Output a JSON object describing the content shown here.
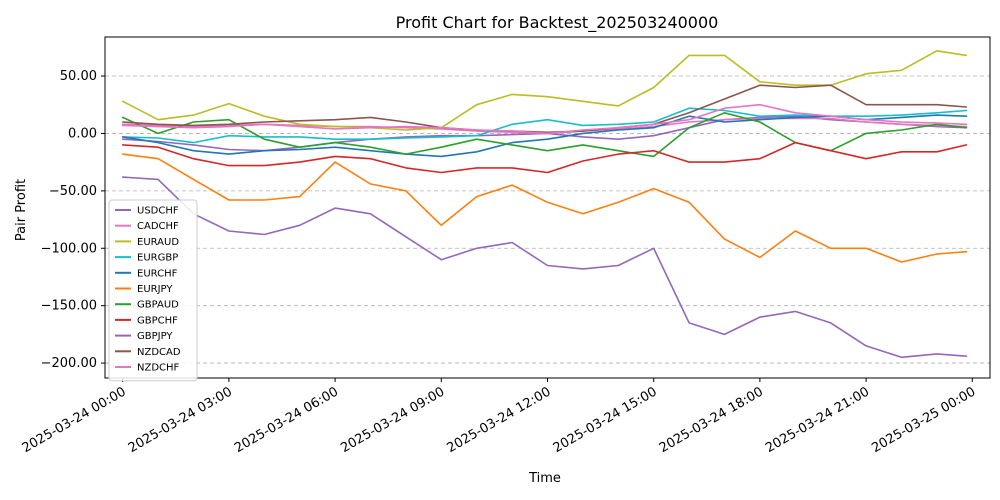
{
  "chart_data": {
    "type": "line",
    "title": "Profit Chart for Backtest_202503240000",
    "xlabel": "Time",
    "ylabel": "Pair Profit",
    "xlim": [
      "2025-03-23 23:30",
      "2025-03-25 00:30"
    ],
    "ylim": [
      -213,
      84
    ],
    "x_ticks": [
      "2025-03-24 00:00",
      "2025-03-24 03:00",
      "2025-03-24 06:00",
      "2025-03-24 09:00",
      "2025-03-24 12:00",
      "2025-03-24 15:00",
      "2025-03-24 18:00",
      "2025-03-24 21:00",
      "2025-03-25 00:00"
    ],
    "y_ticks": [
      50,
      0,
      -50,
      -100,
      -150,
      -200
    ],
    "y_tick_labels": [
      "50.00",
      "0.00",
      "−50.00",
      "−100.00",
      "−150.00",
      "−200.00"
    ],
    "grid": "horizontal dashed",
    "legend_position": "lower-left",
    "x": [
      "2025-03-24 00:00",
      "2025-03-24 01:00",
      "2025-03-24 02:00",
      "2025-03-24 03:00",
      "2025-03-24 04:00",
      "2025-03-24 05:00",
      "2025-03-24 06:00",
      "2025-03-24 07:00",
      "2025-03-24 08:00",
      "2025-03-24 09:00",
      "2025-03-24 10:00",
      "2025-03-24 11:00",
      "2025-03-24 12:00",
      "2025-03-24 13:00",
      "2025-03-24 14:00",
      "2025-03-24 15:00",
      "2025-03-24 16:00",
      "2025-03-24 17:00",
      "2025-03-24 18:00",
      "2025-03-24 19:00",
      "2025-03-24 20:00",
      "2025-03-24 21:00",
      "2025-03-24 22:00",
      "2025-03-24 23:00",
      "2025-03-24 23:50"
    ],
    "series": [
      {
        "name": "USDCHF",
        "color": "#9467bd",
        "values": [
          -5,
          -7,
          -10,
          -14,
          -15,
          -12,
          -8,
          -5,
          -3,
          -2,
          -2,
          -1,
          0,
          -3,
          -5,
          -2,
          5,
          12,
          14,
          15,
          12,
          10,
          8,
          6,
          5
        ]
      },
      {
        "name": "CADCHF",
        "color": "#e377c2",
        "values": [
          8,
          7,
          6,
          7,
          8,
          7,
          6,
          6,
          5,
          4,
          2,
          1,
          0,
          2,
          4,
          6,
          10,
          12,
          13,
          13,
          13,
          10,
          8,
          7,
          6
        ]
      },
      {
        "name": "EURAUD",
        "color": "#bcbd22",
        "values": [
          28,
          12,
          16,
          26,
          15,
          8,
          6,
          5,
          3,
          5,
          25,
          34,
          32,
          28,
          24,
          40,
          68,
          68,
          45,
          42,
          42,
          52,
          55,
          72,
          68
        ]
      },
      {
        "name": "EURGBP",
        "color": "#17becf",
        "values": [
          -3,
          -4,
          -8,
          -2,
          -3,
          -3,
          -5,
          -5,
          -4,
          -3,
          -2,
          8,
          12,
          7,
          8,
          10,
          22,
          20,
          15,
          16,
          15,
          15,
          16,
          18,
          20
        ]
      },
      {
        "name": "EURCHF",
        "color": "#1f77b4",
        "values": [
          -3,
          -8,
          -15,
          -18,
          -15,
          -14,
          -12,
          -15,
          -18,
          -20,
          -16,
          -8,
          -5,
          0,
          3,
          5,
          15,
          10,
          12,
          14,
          15,
          12,
          14,
          16,
          15
        ]
      },
      {
        "name": "EURJPY",
        "color": "#ff7f0e",
        "values": [
          -18,
          -22,
          -40,
          -58,
          -58,
          -55,
          -25,
          -44,
          -50,
          -80,
          -55,
          -45,
          -60,
          -70,
          -60,
          -48,
          -60,
          -92,
          -108,
          -85,
          -100,
          -100,
          -112,
          -105,
          -103
        ]
      },
      {
        "name": "GBPAUD",
        "color": "#2ca02c",
        "values": [
          14,
          0,
          10,
          12,
          -5,
          -12,
          -8,
          -12,
          -18,
          -12,
          -5,
          -10,
          -15,
          -10,
          -15,
          -20,
          5,
          18,
          10,
          -8,
          -15,
          0,
          3,
          8,
          5
        ]
      },
      {
        "name": "GBPCHF",
        "color": "#d62728",
        "values": [
          -10,
          -12,
          -22,
          -28,
          -28,
          -25,
          -20,
          -22,
          -30,
          -34,
          -30,
          -30,
          -34,
          -24,
          -18,
          -15,
          -25,
          -25,
          -22,
          -8,
          -15,
          -22,
          -16,
          -16,
          -10
        ]
      },
      {
        "name": "GBPJPY",
        "color": "#9467bd",
        "values": [
          -38,
          -40,
          -70,
          -85,
          -88,
          -80,
          -65,
          -70,
          -90,
          -110,
          -100,
          -95,
          -115,
          -118,
          -115,
          -100,
          -165,
          -175,
          -160,
          -155,
          -165,
          -185,
          -195,
          -192,
          -194
        ]
      },
      {
        "name": "NZDCAD",
        "color": "#8c564b",
        "values": [
          10,
          8,
          7,
          8,
          10,
          11,
          12,
          14,
          10,
          5,
          3,
          2,
          1,
          2,
          5,
          8,
          18,
          30,
          42,
          40,
          42,
          25,
          25,
          25,
          23
        ]
      },
      {
        "name": "NZDCHF",
        "color": "#e377c2",
        "values": [
          7,
          6,
          5,
          6,
          8,
          6,
          4,
          5,
          6,
          5,
          3,
          2,
          0,
          3,
          5,
          8,
          12,
          22,
          25,
          18,
          15,
          12,
          10,
          9,
          8
        ]
      }
    ]
  }
}
